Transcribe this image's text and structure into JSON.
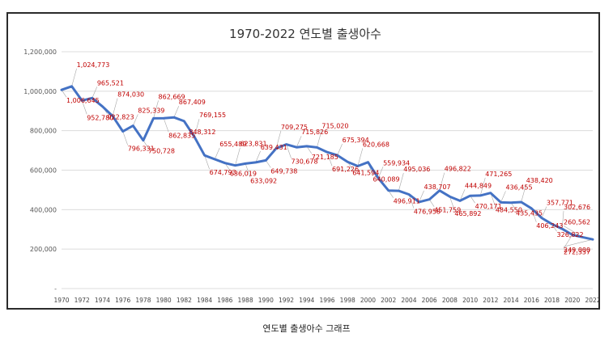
{
  "caption": "연도별 출생아수 그래프",
  "chart_data": {
    "type": "line",
    "title": "1970-2022 연도별 출생아수",
    "xlabel": "",
    "ylabel": "",
    "ylim": [
      0,
      1200000
    ],
    "yticks": [
      0,
      200000,
      400000,
      600000,
      800000,
      1000000,
      1200000
    ],
    "ytick_labels": [
      "-",
      "200,000",
      "400,000",
      "600,000",
      "800,000",
      "1,000,000",
      "1,200,000"
    ],
    "xtick_labels": [
      "1970",
      "1972",
      "1974",
      "1976",
      "1978",
      "1980",
      "1982",
      "1984",
      "1986",
      "1988",
      "1990",
      "1992",
      "1994",
      "1996",
      "1998",
      "2000",
      "2002",
      "2004",
      "2006",
      "2008",
      "2010",
      "2012",
      "2014",
      "2016",
      "2018",
      "2020",
      "2022"
    ],
    "grid": true,
    "legend": "none",
    "line_color": "#4472C4",
    "label_color": "#C00000",
    "series": [
      {
        "x": [
          1970,
          1971,
          1972,
          1973,
          1974,
          1975,
          1976,
          1977,
          1978,
          1979,
          1980,
          1981,
          1982,
          1983,
          1984,
          1985,
          1986,
          1987,
          1988,
          1989,
          1990,
          1991,
          1992,
          1993,
          1994,
          1995,
          1996,
          1997,
          1998,
          1999,
          2000,
          2001,
          2002,
          2003,
          2004,
          2005,
          2006,
          2007,
          2008,
          2009,
          2010,
          2011,
          2012,
          2013,
          2014,
          2015,
          2016,
          2017,
          2018,
          2019,
          2020,
          2021,
          2022
        ],
        "values": [
          1006645,
          1024773,
          952780,
          965521,
          922823,
          874030,
          796331,
          825339,
          750728,
          862669,
          862835,
          867409,
          848312,
          769155,
          674793,
          655489,
          636019,
          623831,
          633092,
          639431,
          649738,
          709275,
          730678,
          715826,
          721185,
          715020,
          691226,
          675394,
          641594,
          620668,
          640089,
          559934,
          496911,
          495036,
          476958,
          438707,
          451759,
          496822,
          465892,
          444849,
          470171,
          471265,
          484550,
          436455,
          435435,
          438420,
          406243,
          357771,
          326822,
          302676,
          272337,
          260562,
          249000
        ],
        "labels": [
          "1,006,645",
          "1,024,773",
          "952,780",
          "965,521",
          "922,823",
          "874,030",
          "796,331",
          "825,339",
          "750,728",
          "862,669",
          "862,835",
          "867,409",
          "848,312",
          "769,155",
          "674,793",
          "655,489",
          "636,019",
          "623,831",
          "633,092",
          "639,431",
          "649,738",
          "709,275",
          "730,678",
          "715,826",
          "721,185",
          "715,020",
          "691,226",
          "675,394",
          "641,594",
          "620,668",
          "640,089",
          "559,934",
          "496,911",
          "495,036",
          "476,958",
          "438,707",
          "451,759",
          "496,822",
          "465,892",
          "444,849",
          "470,171",
          "471,265",
          "484,550",
          "436,455",
          "435,435",
          "438,420",
          "406,243",
          "357,771",
          "326,822",
          "302,676",
          "272,337",
          "260,562",
          "249,000"
        ]
      }
    ]
  }
}
